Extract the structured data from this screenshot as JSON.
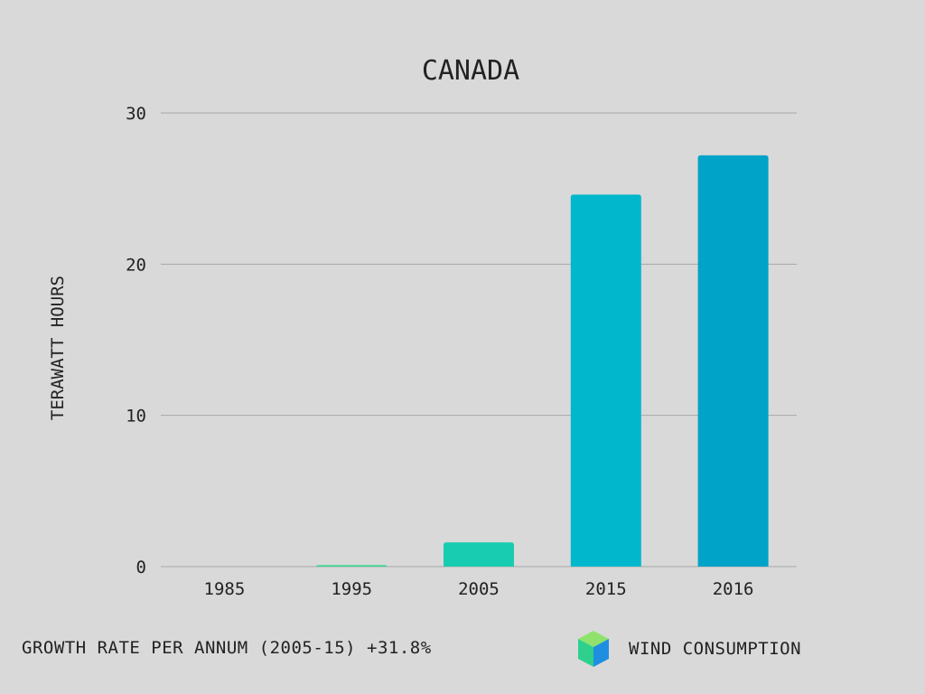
{
  "chart_data": {
    "type": "bar",
    "title": "CANADA",
    "ylabel": "TERAWATT HOURS",
    "xlabel": "",
    "categories": [
      "1985",
      "1995",
      "2005",
      "2015",
      "2016"
    ],
    "values": [
      0,
      0.1,
      1.6,
      24.6,
      27.2
    ],
    "ylim": [
      0,
      30
    ],
    "yticks": [
      "0",
      "10",
      "20",
      "30"
    ],
    "grid": true,
    "bar_colors": [
      "#2fd3a0",
      "#35d690",
      "#17ccb0",
      "#00b7cc",
      "#00a3c8"
    ],
    "series": [
      {
        "name": "WIND CONSUMPTION",
        "values": [
          0,
          0.1,
          1.6,
          24.6,
          27.2
        ]
      }
    ]
  },
  "footer": {
    "growth_text": "GROWTH RATE PER ANNUM (2005-15) +31.8%"
  },
  "legend": {
    "label": "WIND CONSUMPTION",
    "icon": "cube-icon",
    "colors": {
      "top": "#8fe36c",
      "left": "#2fd08d",
      "right": "#1e8fe0"
    }
  },
  "colors": {
    "background": "#d9d9d9",
    "grid": "#a8a8a8",
    "text": "#222222"
  }
}
